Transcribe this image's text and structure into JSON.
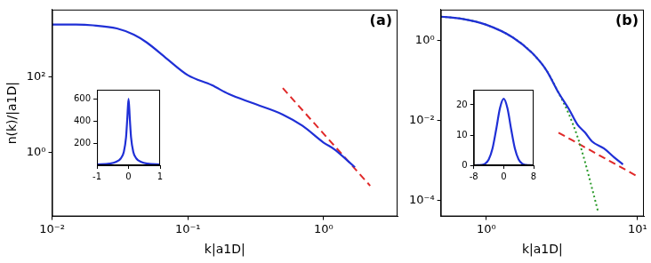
{
  "chart_data": [
    {
      "type": "line",
      "annotation": "(a)",
      "x_label": "k|a1D|",
      "y_label": "n(k)/|a1D|",
      "log": true,
      "xlim": [
        0.01,
        3.5
      ],
      "ylim": [
        0.02,
        6000
      ],
      "xticks": [
        {
          "value": 0.01,
          "label": "10⁻²"
        },
        {
          "value": 0.1,
          "label": "10⁻¹"
        },
        {
          "value": 1,
          "label": "10⁰"
        }
      ],
      "yticks": [
        {
          "value": 1,
          "label": "10⁰"
        },
        {
          "value": 100,
          "label": "10²"
        }
      ],
      "series": [
        {
          "color": "#1f2fd6",
          "line_style": "solid",
          "x": [
            0.01,
            0.015,
            0.02,
            0.03,
            0.04,
            0.05,
            0.07,
            0.1,
            0.15,
            0.2,
            0.3,
            0.5,
            0.7,
            1,
            1.2,
            1.5,
            1.7
          ],
          "values": [
            2400,
            2400,
            2300,
            1900,
            1300,
            800,
            300,
            110,
            60,
            35,
            20,
            10,
            5,
            1.8,
            1.2,
            0.6,
            0.4
          ]
        },
        {
          "color": "#e02828",
          "line_style": "dashed",
          "x": [
            0.5,
            2.2
          ],
          "values": [
            50,
            0.13
          ]
        }
      ]
    },
    {
      "type": "line",
      "xlim": [
        -1,
        1
      ],
      "ylim": [
        0,
        680
      ],
      "xticks": [
        -1,
        0,
        1
      ],
      "yticks": [
        200,
        400,
        600
      ],
      "series": [
        {
          "color": "#1f2fd6",
          "line_style": "solid",
          "x": [
            -1,
            -0.6,
            -0.4,
            -0.25,
            -0.15,
            -0.08,
            -0.04,
            0,
            0.04,
            0.08,
            0.15,
            0.25,
            0.4,
            0.6,
            1
          ],
          "values": [
            8,
            15,
            30,
            60,
            120,
            250,
            420,
            600,
            420,
            250,
            120,
            60,
            30,
            15,
            8
          ]
        }
      ]
    },
    {
      "type": "line",
      "annotation": "(b)",
      "x_label": "k|a1D|",
      "log": true,
      "xlim": [
        0.5,
        11
      ],
      "ylim": [
        4e-05,
        6
      ],
      "xticks": [
        {
          "value": 1,
          "label": "10⁰"
        },
        {
          "value": 10,
          "label": "10¹"
        }
      ],
      "yticks": [
        {
          "value": 0.0001,
          "label": "10⁻⁴"
        },
        {
          "value": 0.01,
          "label": "10⁻²"
        },
        {
          "value": 1,
          "label": "10⁰"
        }
      ],
      "series": [
        {
          "color": "#1f2fd6",
          "line_style": "solid",
          "x": [
            0.5,
            0.7,
            1,
            1.5,
            2,
            2.5,
            3,
            3.5,
            4,
            4.5,
            5,
            6,
            7,
            8
          ],
          "values": [
            4,
            3.5,
            2.5,
            1.2,
            0.5,
            0.18,
            0.05,
            0.02,
            0.008,
            0.005,
            0.003,
            0.002,
            0.0012,
            0.0008
          ]
        },
        {
          "color": "#2a9a2a",
          "line_style": "dotted",
          "x": [
            0.5,
            0.7,
            1,
            1.5,
            2,
            2.5,
            3,
            3.5,
            4,
            4.5,
            5,
            5.5
          ],
          "values": [
            4,
            3.5,
            2.5,
            1.2,
            0.5,
            0.18,
            0.05,
            0.015,
            0.004,
            0.0009,
            0.0002,
            5e-05
          ]
        },
        {
          "color": "#e02828",
          "line_style": "dashed",
          "x": [
            3,
            10
          ],
          "values": [
            0.005,
            0.0004
          ]
        }
      ]
    },
    {
      "type": "line",
      "xlim": [
        -8,
        8
      ],
      "ylim": [
        0,
        25
      ],
      "xticks": [
        -8,
        0,
        8
      ],
      "yticks": [
        0,
        10,
        20
      ],
      "series": [
        {
          "color": "#1f2fd6",
          "line_style": "solid",
          "x": [
            -8,
            -7,
            -6,
            -5,
            -4,
            -3,
            -2,
            -1,
            0,
            1,
            2,
            3,
            4,
            5,
            6,
            7,
            8
          ],
          "values": [
            0,
            0.01,
            0.09,
            0.46,
            1.9,
            5.5,
            11.9,
            18.9,
            22,
            18.9,
            11.9,
            5.5,
            1.9,
            0.46,
            0.09,
            0.01,
            0
          ]
        }
      ]
    }
  ]
}
